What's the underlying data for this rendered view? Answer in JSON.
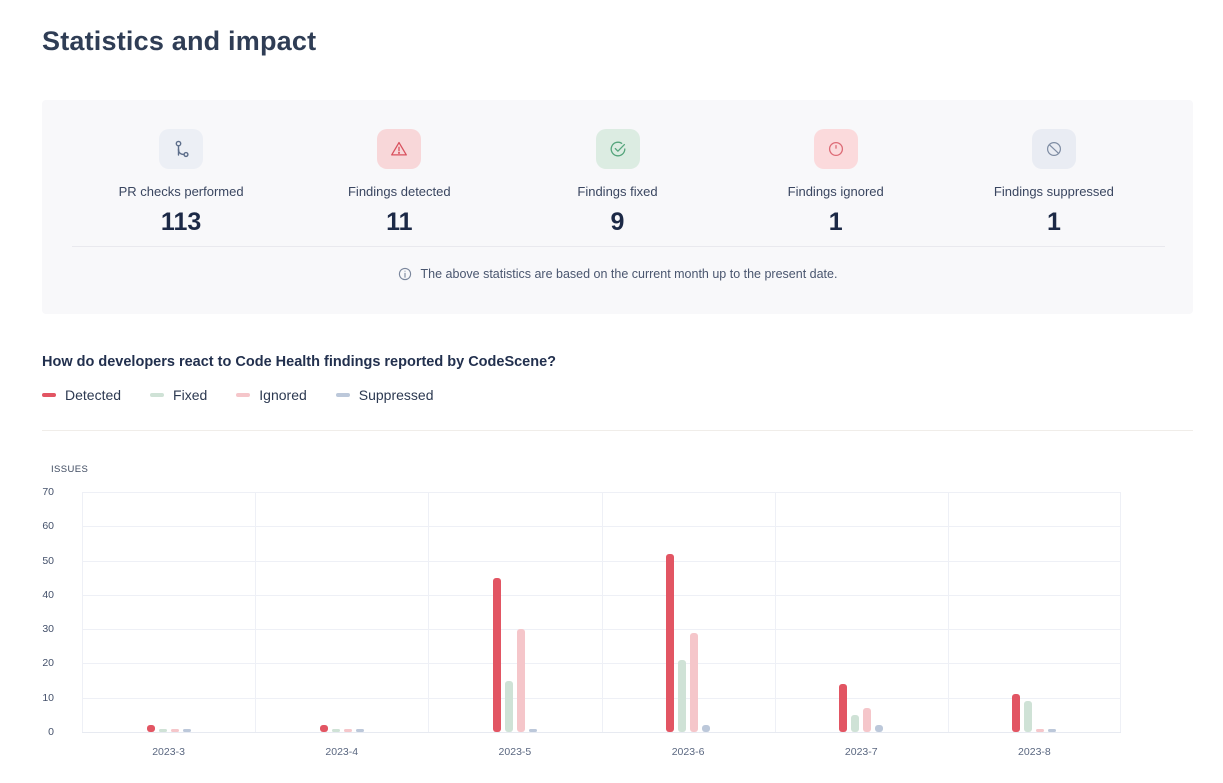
{
  "page": {
    "title": "Statistics and impact"
  },
  "colors": {
    "panel_bg": "#f8f8fa",
    "heading_text": "#2f3d55",
    "value_text": "#1c2946",
    "grid_line": "#eef0f6"
  },
  "stats_panel": {
    "cards": [
      {
        "label": "PR checks performed",
        "value": "113",
        "icon": "pr-checks-icon",
        "icon_bg": "#eceff5",
        "icon_color": "#5d6e8b"
      },
      {
        "label": "Findings detected",
        "value": "11",
        "icon": "warning-triangle-icon",
        "icon_bg": "#f8d7d9",
        "icon_color": "#d9515e"
      },
      {
        "label": "Findings fixed",
        "value": "9",
        "icon": "check-circle-icon",
        "icon_bg": "#dcece2",
        "icon_color": "#55a57c"
      },
      {
        "label": "Findings ignored",
        "value": "1",
        "icon": "alert-circle-icon",
        "icon_bg": "#fbdadc",
        "icon_color": "#dd6b76"
      },
      {
        "label": "Findings suppressed",
        "value": "1",
        "icon": "slash-circle-icon",
        "icon_bg": "#e9ecf3",
        "icon_color": "#7e8ca3"
      }
    ],
    "note": "The above statistics are based on the current month up to the present date.",
    "note_icon": "info-icon"
  },
  "chart_section": {
    "heading": "How do developers react to Code Health findings reported by CodeScene?",
    "legend": [
      {
        "label": "Detected",
        "color": "#e25563"
      },
      {
        "label": "Fixed",
        "color": "#cfe2d6"
      },
      {
        "label": "Ignored",
        "color": "#f5c6ca"
      },
      {
        "label": "Suppressed",
        "color": "#bcc8da"
      }
    ]
  },
  "chart_data": {
    "type": "bar",
    "title": "How do developers react to Code Health findings reported by CodeScene?",
    "xlabel": "",
    "ylabel": "ISSUES",
    "ylim": [
      0,
      70
    ],
    "ytick_interval": 10,
    "grid": true,
    "legend_position": "top-left",
    "categories": [
      "2023-3",
      "2023-4",
      "2023-5",
      "2023-6",
      "2023-7",
      "2023-8"
    ],
    "series": [
      {
        "name": "Detected",
        "color": "#e25563",
        "values": [
          2,
          2,
          45,
          52,
          14,
          11
        ]
      },
      {
        "name": "Fixed",
        "color": "#cfe2d6",
        "values": [
          1,
          1,
          15,
          21,
          5,
          9
        ]
      },
      {
        "name": "Ignored",
        "color": "#f5c6ca",
        "values": [
          1,
          1,
          30,
          29,
          7,
          1
        ]
      },
      {
        "name": "Suppressed",
        "color": "#bcc8da",
        "values": [
          1,
          1,
          1,
          2,
          2,
          1
        ]
      }
    ]
  }
}
